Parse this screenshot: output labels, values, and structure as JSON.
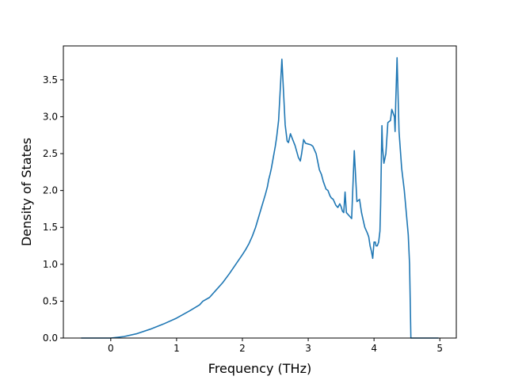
{
  "chart_data": {
    "type": "line",
    "title": "",
    "xlabel": "Frequency (THz)",
    "ylabel": "Density of States",
    "xlim": [
      -0.72,
      5.25
    ],
    "ylim": [
      0.0,
      3.96
    ],
    "xticks": [
      0,
      1,
      2,
      3,
      4,
      5
    ],
    "xtick_labels": [
      "0",
      "1",
      "2",
      "3",
      "4",
      "5"
    ],
    "yticks": [
      0.0,
      0.5,
      1.0,
      1.5,
      2.0,
      2.5,
      3.0,
      3.5
    ],
    "ytick_labels": [
      "0.0",
      "0.5",
      "1.0",
      "1.5",
      "2.0",
      "2.5",
      "3.0",
      "3.5"
    ],
    "grid": false,
    "legend": "none",
    "series": [
      {
        "color": "#1f77b4",
        "x": [
          -0.45,
          -0.2,
          0.0,
          0.2,
          0.4,
          0.6,
          0.8,
          1.0,
          1.2,
          1.35,
          1.4,
          1.5,
          1.6,
          1.7,
          1.8,
          1.9,
          2.0,
          2.05,
          2.1,
          2.15,
          2.2,
          2.25,
          2.3,
          2.35,
          2.38,
          2.4,
          2.42,
          2.44,
          2.47,
          2.5,
          2.52,
          2.55,
          2.6,
          2.65,
          2.68,
          2.7,
          2.73,
          2.76,
          2.8,
          2.85,
          2.88,
          2.9,
          2.93,
          2.96,
          3.0,
          3.04,
          3.07,
          3.12,
          3.17,
          3.2,
          3.23,
          3.27,
          3.3,
          3.33,
          3.35,
          3.38,
          3.42,
          3.45,
          3.48,
          3.5,
          3.52,
          3.54,
          3.56,
          3.58,
          3.6,
          3.63,
          3.66,
          3.7,
          3.74,
          3.78,
          3.81,
          3.84,
          3.86,
          3.88,
          3.9,
          3.92,
          3.94,
          3.96,
          3.98,
          4.0,
          4.02,
          4.03,
          4.05,
          4.07,
          4.09,
          4.1,
          4.12,
          4.13,
          4.15,
          4.18,
          4.21,
          4.25,
          4.27,
          4.29,
          4.31,
          4.32,
          4.33,
          4.35,
          4.38,
          4.42,
          4.46,
          4.49,
          4.52,
          4.54,
          4.56,
          4.8,
          4.98
        ],
        "y": [
          0.0,
          0.0,
          0.0,
          0.02,
          0.06,
          0.12,
          0.19,
          0.27,
          0.37,
          0.45,
          0.5,
          0.55,
          0.65,
          0.75,
          0.87,
          1.0,
          1.13,
          1.2,
          1.28,
          1.38,
          1.5,
          1.65,
          1.8,
          1.95,
          2.05,
          2.15,
          2.22,
          2.3,
          2.45,
          2.6,
          2.72,
          2.95,
          3.78,
          2.89,
          2.67,
          2.65,
          2.77,
          2.7,
          2.61,
          2.45,
          2.4,
          2.5,
          2.69,
          2.64,
          2.63,
          2.62,
          2.6,
          2.5,
          2.28,
          2.22,
          2.12,
          2.02,
          2.0,
          1.93,
          1.9,
          1.88,
          1.8,
          1.77,
          1.82,
          1.78,
          1.72,
          1.7,
          1.98,
          1.7,
          1.68,
          1.65,
          1.62,
          2.54,
          1.85,
          1.88,
          1.7,
          1.58,
          1.5,
          1.46,
          1.42,
          1.37,
          1.25,
          1.18,
          1.08,
          1.3,
          1.3,
          1.25,
          1.25,
          1.3,
          1.45,
          1.8,
          2.88,
          2.58,
          2.37,
          2.5,
          2.92,
          2.95,
          3.1,
          3.05,
          3.0,
          2.8,
          3.2,
          3.8,
          2.8,
          2.3,
          2.0,
          1.7,
          1.4,
          1.0,
          0.0,
          0.0,
          0.0
        ]
      }
    ]
  }
}
